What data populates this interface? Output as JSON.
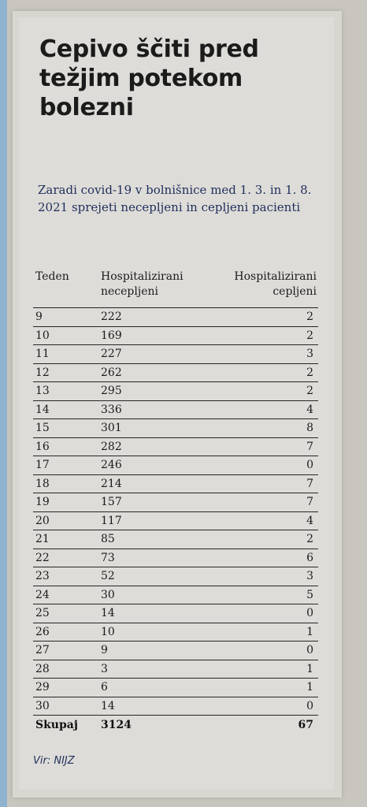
{
  "title": "Cepivo ščiti pred težjim potekom bolezni",
  "subtitle": "Zaradi covid-19 v bolnišnice med 1. 3. in 1. 8. 2021 sprejeti necepljeni in cepljeni pacienti",
  "table": {
    "headers": [
      "Teden",
      "Hospitalizirani necepljeni",
      "Hospitalizirani cepljeni"
    ],
    "rows": [
      [
        "9",
        "222",
        "2"
      ],
      [
        "10",
        "169",
        "2"
      ],
      [
        "11",
        "227",
        "3"
      ],
      [
        "12",
        "262",
        "2"
      ],
      [
        "13",
        "295",
        "2"
      ],
      [
        "14",
        "336",
        "4"
      ],
      [
        "15",
        "301",
        "8"
      ],
      [
        "16",
        "282",
        "7"
      ],
      [
        "17",
        "246",
        "0"
      ],
      [
        "18",
        "214",
        "7"
      ],
      [
        "19",
        "157",
        "7"
      ],
      [
        "20",
        "117",
        "4"
      ],
      [
        "21",
        "85",
        "2"
      ],
      [
        "22",
        "73",
        "6"
      ],
      [
        "23",
        "52",
        "3"
      ],
      [
        "24",
        "30",
        "5"
      ],
      [
        "25",
        "14",
        "0"
      ],
      [
        "26",
        "10",
        "1"
      ],
      [
        "27",
        "9",
        "0"
      ],
      [
        "28",
        "3",
        "1"
      ],
      [
        "29",
        "6",
        "1"
      ],
      [
        "30",
        "14",
        "0"
      ]
    ],
    "total": [
      "Skupaj",
      "3124",
      "67"
    ]
  },
  "source": "Vir: NIJZ"
}
